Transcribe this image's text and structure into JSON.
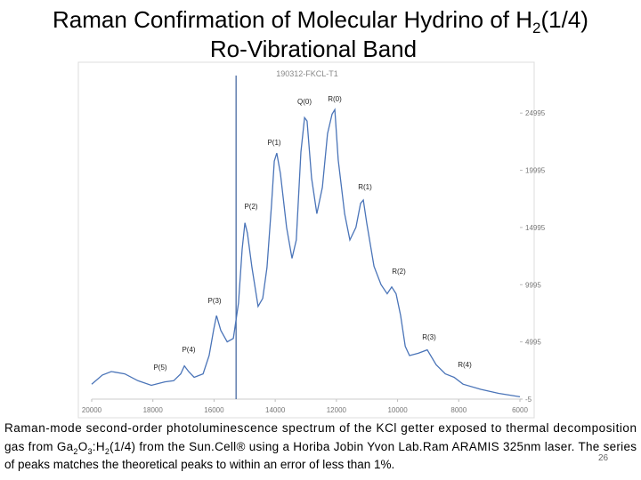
{
  "slide_title": {
    "line1": [
      "Raman Confirmation of Molecular Hydrino of H",
      "2",
      "(1/4)"
    ],
    "line2": "Ro-Vibrational Band"
  },
  "chart_data": {
    "type": "line",
    "title": "190312-FKCL-T1",
    "x": [
      20000,
      19650,
      19360,
      18920,
      18490,
      18050,
      17610,
      17320,
      17090,
      16970,
      16830,
      16650,
      16360,
      16160,
      16010,
      15920,
      15780,
      15570,
      15370,
      15200,
      15080,
      14990,
      14910,
      14760,
      14560,
      14410,
      14270,
      14120,
      14030,
      13950,
      13830,
      13630,
      13450,
      13310,
      13160,
      13040,
      12960,
      12810,
      12640,
      12460,
      12290,
      12140,
      12050,
      11940,
      11730,
      11560,
      11360,
      11210,
      11120,
      11010,
      10770,
      10540,
      10340,
      10190,
      10050,
      9900,
      9750,
      9610,
      9320,
      9030,
      8740,
      8440,
      8150,
      7860,
      7280,
      6700,
      6000
    ],
    "series": [
      {
        "color": "#4a74b8",
        "values": [
          1300,
          2100,
          2400,
          2200,
          1600,
          1200,
          1500,
          1600,
          2200,
          2900,
          2400,
          1900,
          2200,
          3800,
          6100,
          7300,
          6000,
          5000,
          5300,
          8400,
          13100,
          15400,
          14500,
          11500,
          8100,
          8800,
          11500,
          17000,
          20800,
          21500,
          19700,
          15000,
          12300,
          13900,
          21600,
          24600,
          24300,
          19300,
          16200,
          18500,
          23200,
          24900,
          25300,
          20900,
          16200,
          13900,
          15000,
          17100,
          17400,
          15400,
          11600,
          10000,
          9200,
          9800,
          9200,
          7300,
          4600,
          3800,
          4000,
          4300,
          3000,
          2200,
          1900,
          1300,
          850,
          500,
          200
        ]
      }
    ],
    "xlim": [
      20000,
      6000
    ],
    "xticks": [
      20000,
      18000,
      16000,
      14000,
      12000,
      10000,
      8000,
      6000
    ],
    "ylim": [
      -5,
      27495
    ],
    "yticks": [
      -5,
      4995,
      9995,
      14995,
      19995,
      24995
    ],
    "vline": 15280,
    "annotations": [
      "Q(0)",
      "R(0)",
      "P(1)",
      "R(1)",
      "P(2)",
      "R(2)",
      "P(3)",
      "R(3)",
      "P(4)",
      "R(4)",
      "P(5)"
    ]
  },
  "caption": {
    "line1": "Raman-mode second-order photoluminescence spectrum of the KCl getter exposed to thermal decomposition",
    "line2": [
      "gas from Ga",
      "2",
      "O",
      "3",
      ":H",
      "2",
      "(1/4) from the Sun.Cell® using a Horiba Jobin Yvon Lab.Ram ARAMIS 325nm laser.  The series"
    ],
    "line3": "of peaks matches the theoretical peaks to within an error of less than 1%."
  },
  "slide_number": "26"
}
